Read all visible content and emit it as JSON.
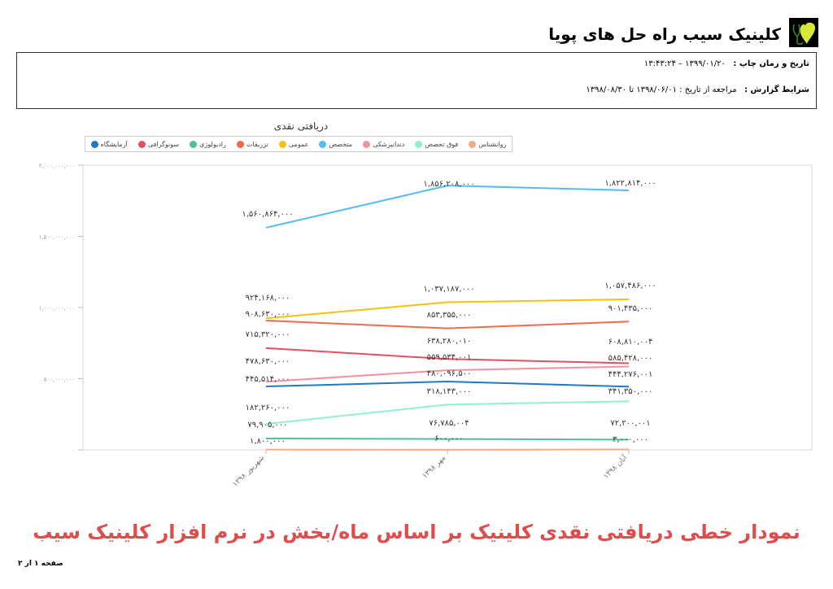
{
  "header": {
    "clinic_name": "کلینیک سیب راه حل های پویا",
    "logo_icon": "heart-stethoscope-logo"
  },
  "info": {
    "print_label": "تاریخ و زمان چاپ :",
    "print_value": "۱۳۹۹/۰۱/۲۰ – ۱۳:۴۳:۲۴",
    "report_label": "شرایط گزارش :",
    "report_value": "مراجعه از تاریخ : ۱۳۹۸/۰۶/۰۱ تا ۱۳۹۸/۰۸/۳۰"
  },
  "caption": "نمودار خطی دریافتی نقدی کلینیک بر اساس ماه/بخش در نرم افزار کلینیک سیب",
  "footer": {
    "page": "صفحه ۱ از ۲"
  },
  "chart_data": {
    "type": "line",
    "title": "دریافتی نقدی",
    "xlabel": "",
    "ylabel": "",
    "ylim": [
      0,
      2000000000
    ],
    "yticks": [
      0,
      500000000,
      1000000000,
      1500000000,
      2000000000
    ],
    "ytick_labels": [
      "۰",
      "۵۰۰,۰۰۰,۰۰۰",
      "۱,۰۰۰,۰۰۰,۰۰۰",
      "۱,۵۰۰,۰۰۰,۰۰۰",
      "۲,۰۰۰,۰۰۰,۰۰۰"
    ],
    "categories": [
      "شهریور ۱۳۹۸",
      "مهر ۱۳۹۸",
      "آبان ۱۳۹۸"
    ],
    "grid": false,
    "legend_position": "top",
    "series": [
      {
        "name": "آزمایشگاه",
        "color": "#1f78c8",
        "values": [
          445514000,
          480096500,
          444276001
        ],
        "labels": [
          "۴۴۵,۵۱۴,۰۰۰",
          "۴۸۰,۰۹۶,۵۰۰",
          "۴۴۴,۲۷۶,۰۰۱"
        ]
      },
      {
        "name": "سونوگرافی",
        "color": "#e5505e",
        "values": [
          715320000,
          638280010,
          608810004
        ],
        "labels": [
          "۷۱۵,۳۲۰,۰۰۰",
          "۶۳۸,۲۸۰,۰۱۰",
          "۶۰۸,۸۱۰,۰۰۴"
        ]
      },
      {
        "name": "رادیولوژی",
        "color": "#4dbf9a",
        "values": [
          79905000,
          76785004,
          72200001
        ],
        "labels": [
          "۷۹,۹۰۵,۰۰۰",
          "۷۶,۷۸۵,۰۰۴",
          "۷۲,۲۰۰,۰۰۱"
        ]
      },
      {
        "name": "تزریقات",
        "color": "#ef6a4c",
        "values": [
          908630000,
          853355000,
          901435000
        ],
        "labels": [
          "۹۰۸,۶۳۰,۰۰۰",
          "۸۵۳,۳۵۵,۰۰۰",
          "۹۰۱,۴۳۵,۰۰۰"
        ]
      },
      {
        "name": "عمومی",
        "color": "#f3c20f",
        "values": [
          924168000,
          1037187000,
          1057486000
        ],
        "labels": [
          "۹۲۴,۱۶۸,۰۰۰",
          "۱,۰۳۷,۱۸۷,۰۰۰",
          "۱,۰۵۷,۴۸۶,۰۰۰"
        ]
      },
      {
        "name": "متخصص",
        "color": "#52bdf0",
        "values": [
          1560864000,
          1856208000,
          1822814000
        ],
        "labels": [
          "۱,۵۶۰,۸۶۴,۰۰۰",
          "۱,۸۵۶,۲۰۸,۰۰۰",
          "۱,۸۲۲,۸۱۴,۰۰۰"
        ]
      },
      {
        "name": "دندانپزشکی",
        "color": "#f3919d",
        "values": [
          478630000,
          559534001,
          585428000
        ],
        "labels": [
          "۴۷۸,۶۳۰,۰۰۰",
          "۵۵۹,۵۳۴,۰۰۱",
          "۵۸۵,۴۲۸,۰۰۰"
        ]
      },
      {
        "name": "فوق تخصص",
        "color": "#8ff0d4",
        "values": [
          182260000,
          318143000,
          341350000
        ],
        "labels": [
          "۱۸۲,۲۶۰,۰۰۰",
          "۳۱۸,۱۴۳,۰۰۰",
          "۳۴۱,۳۵۰,۰۰۰"
        ]
      },
      {
        "name": "روانشناس",
        "color": "#f3a98a",
        "values": [
          1800000,
          600000,
          3000000
        ],
        "labels": [
          "۱,۸۰۰,۰۰۰",
          "۶۰۰,۰۰۰",
          "۳,۰۰۰,۰۰۰"
        ]
      }
    ]
  }
}
